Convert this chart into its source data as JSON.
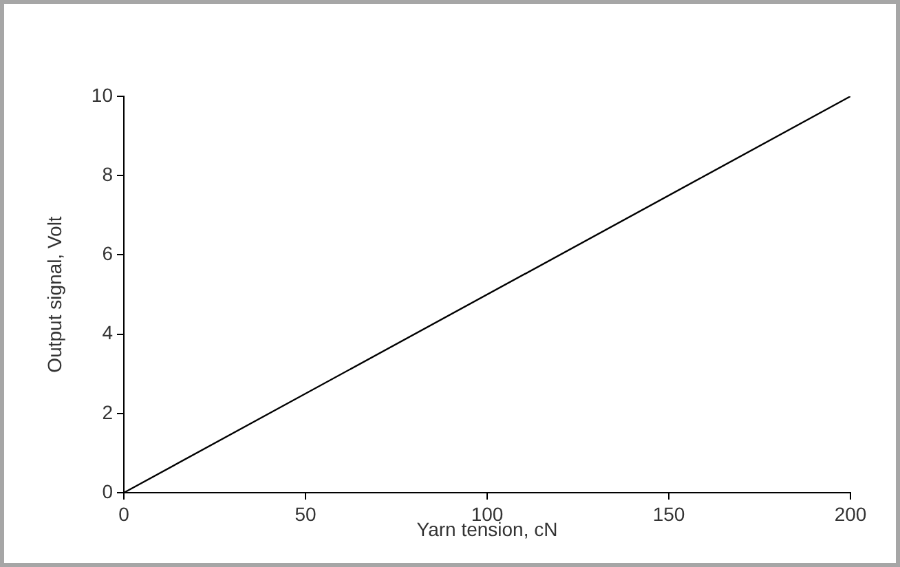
{
  "chart_data": {
    "type": "line",
    "xlabel": "Yarn tension, cN",
    "ylabel": "Output signal, Volt",
    "x": [
      0,
      200
    ],
    "series": [
      {
        "color": "#000000",
        "values": [
          0,
          10
        ]
      }
    ],
    "xlim": [
      0,
      200
    ],
    "xticks": [
      0,
      50,
      100,
      150,
      200
    ],
    "ylim": [
      0,
      10
    ],
    "yticks": [
      0,
      2,
      4,
      6,
      8,
      10
    ],
    "grid": false,
    "legend": false,
    "marker": "none",
    "line_style": "solid"
  }
}
